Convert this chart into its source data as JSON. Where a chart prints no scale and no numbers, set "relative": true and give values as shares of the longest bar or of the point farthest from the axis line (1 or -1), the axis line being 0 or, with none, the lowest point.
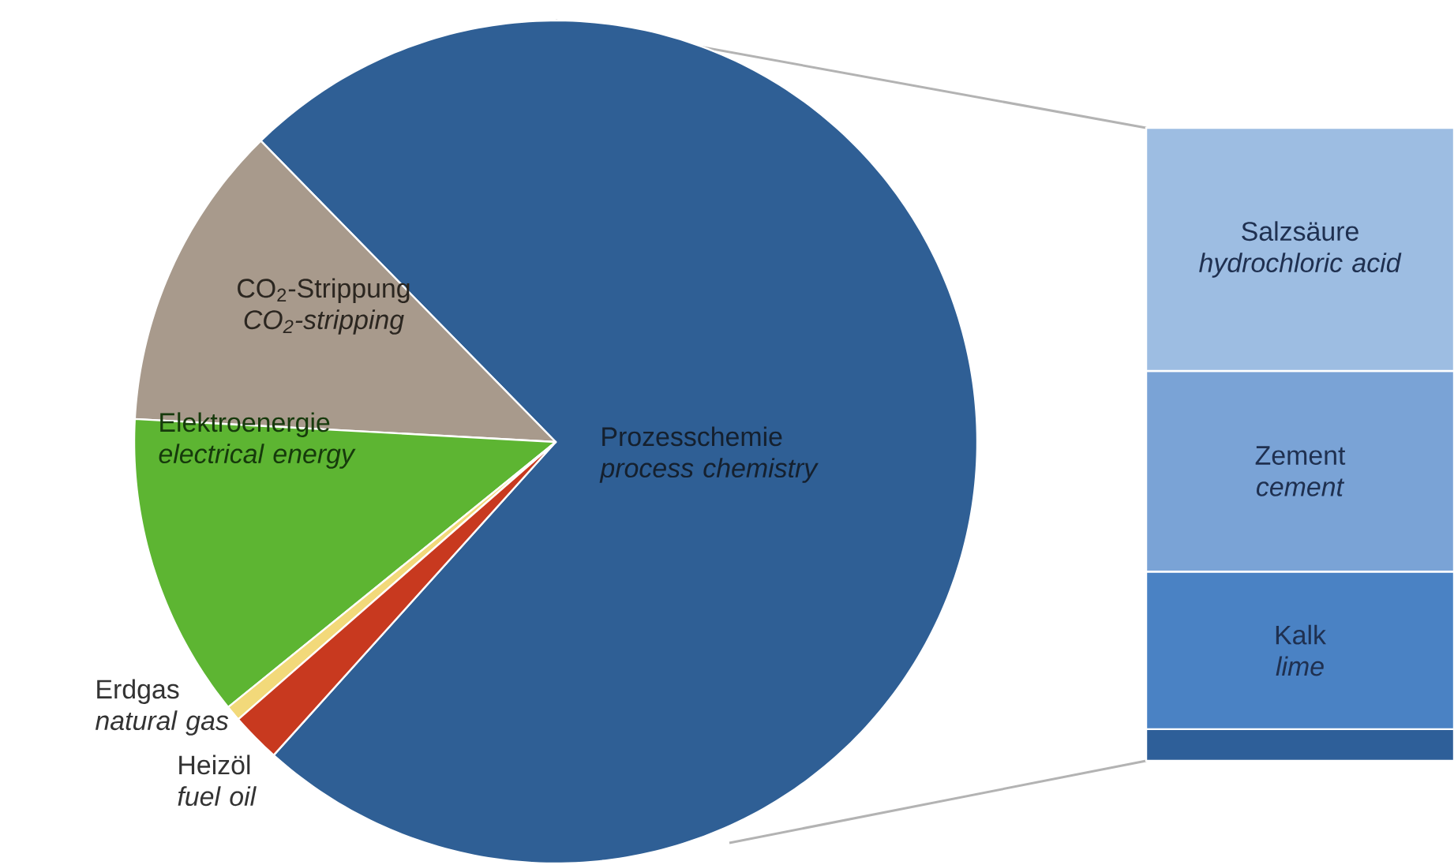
{
  "chart_data": [
    {
      "type": "pie",
      "categories": [
        "Prozesschemie *process chemistry*",
        "CO$_{2}$-Strippung *CO$_{2}$-stripping*",
        "Elektroenergie *electrical energy*",
        "Erdgas *natural gas*",
        "Heizöl *fuel oil*"
      ],
      "values": [
        74.0,
        11.8,
        11.7,
        0.6,
        1.9
      ],
      "colors": [
        "#2f5f95",
        "#a89a8c",
        "#5db532",
        "#f2d97a",
        "#c8391f"
      ]
    },
    {
      "type": "bar",
      "stacked": true,
      "relative": true,
      "categories": [
        null
      ],
      "series": [
        {
          "color": "#2e5f99",
          "values": [
            0.05
          ]
        },
        {
          "name": "Kalk *lime*",
          "color": "#4a82c4",
          "values": [
            0.249
          ]
        },
        {
          "name": "Zement *cement*",
          "color": "#7aa3d6",
          "values": [
            0.317
          ]
        },
        {
          "name": "Salzsäure *hydrochloric acid*",
          "color": "#9dbde2",
          "values": [
            0.384
          ]
        }
      ]
    }
  ]
}
